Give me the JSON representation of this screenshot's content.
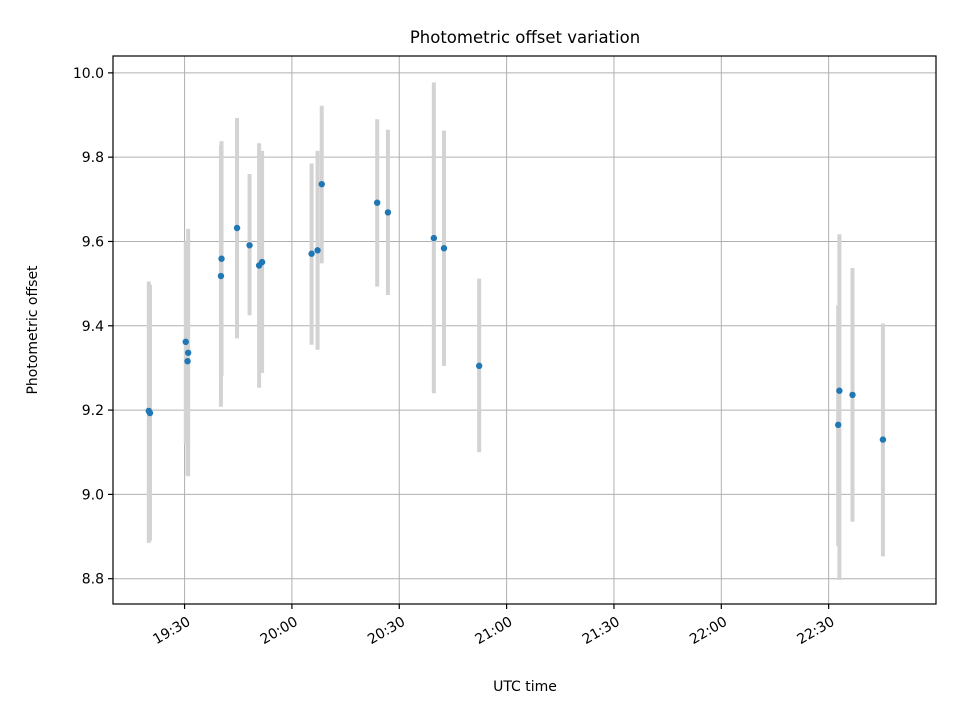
{
  "chart_data": {
    "type": "scatter",
    "title": "Photometric offset variation",
    "xlabel": "UTC time",
    "ylabel": "Photometric offset",
    "x_axis": {
      "kind": "time",
      "range": [
        "19:10",
        "23:00"
      ],
      "ticks": [
        "19:30",
        "20:00",
        "20:30",
        "21:00",
        "21:30",
        "22:00",
        "22:30"
      ]
    },
    "y_axis": {
      "range": [
        8.74,
        10.04
      ],
      "ticks": [
        "8.8",
        "9.0",
        "9.2",
        "9.4",
        "9.6",
        "9.8",
        "10.0"
      ]
    },
    "grid": true,
    "colors": {
      "point": "#1f77b4",
      "errorbar": "#d3d3d3"
    },
    "points": [
      {
        "t": "19:20:00",
        "y": 9.198,
        "err_low": 8.885,
        "err_high": 9.505
      },
      {
        "t": "19:20:20",
        "y": 9.193,
        "err_low": 8.89,
        "err_high": 9.497
      },
      {
        "t": "19:30:20",
        "y": 9.362,
        "err_low": 9.12,
        "err_high": 9.6
      },
      {
        "t": "19:30:50",
        "y": 9.316,
        "err_low": 9.045,
        "err_high": 9.59
      },
      {
        "t": "19:31:00",
        "y": 9.336,
        "err_low": 9.043,
        "err_high": 9.63
      },
      {
        "t": "19:40:10",
        "y": 9.518,
        "err_low": 9.208,
        "err_high": 9.828
      },
      {
        "t": "19:40:20",
        "y": 9.559,
        "err_low": 9.28,
        "err_high": 9.838
      },
      {
        "t": "19:44:40",
        "y": 9.632,
        "err_low": 9.37,
        "err_high": 9.893
      },
      {
        "t": "19:48:10",
        "y": 9.591,
        "err_low": 9.425,
        "err_high": 9.76
      },
      {
        "t": "19:50:50",
        "y": 9.543,
        "err_low": 9.253,
        "err_high": 9.833
      },
      {
        "t": "19:51:40",
        "y": 9.551,
        "err_low": 9.288,
        "err_high": 9.815
      },
      {
        "t": "20:05:30",
        "y": 9.571,
        "err_low": 9.355,
        "err_high": 9.785
      },
      {
        "t": "20:07:10",
        "y": 9.579,
        "err_low": 9.343,
        "err_high": 9.815
      },
      {
        "t": "20:08:20",
        "y": 9.736,
        "err_low": 9.548,
        "err_high": 9.922
      },
      {
        "t": "20:23:50",
        "y": 9.692,
        "err_low": 9.493,
        "err_high": 9.89
      },
      {
        "t": "20:26:50",
        "y": 9.669,
        "err_low": 9.473,
        "err_high": 9.865
      },
      {
        "t": "20:39:40",
        "y": 9.608,
        "err_low": 9.24,
        "err_high": 9.977
      },
      {
        "t": "20:42:30",
        "y": 9.584,
        "err_low": 9.305,
        "err_high": 9.863
      },
      {
        "t": "20:52:20",
        "y": 9.305,
        "err_low": 9.1,
        "err_high": 9.512
      },
      {
        "t": "22:32:40",
        "y": 9.165,
        "err_low": 8.878,
        "err_high": 9.448
      },
      {
        "t": "22:33:00",
        "y": 9.246,
        "err_low": 8.797,
        "err_high": 9.617
      },
      {
        "t": "22:36:40",
        "y": 9.236,
        "err_low": 8.935,
        "err_high": 9.537
      },
      {
        "t": "22:45:10",
        "y": 9.13,
        "err_low": 8.853,
        "err_high": 9.405
      }
    ]
  }
}
